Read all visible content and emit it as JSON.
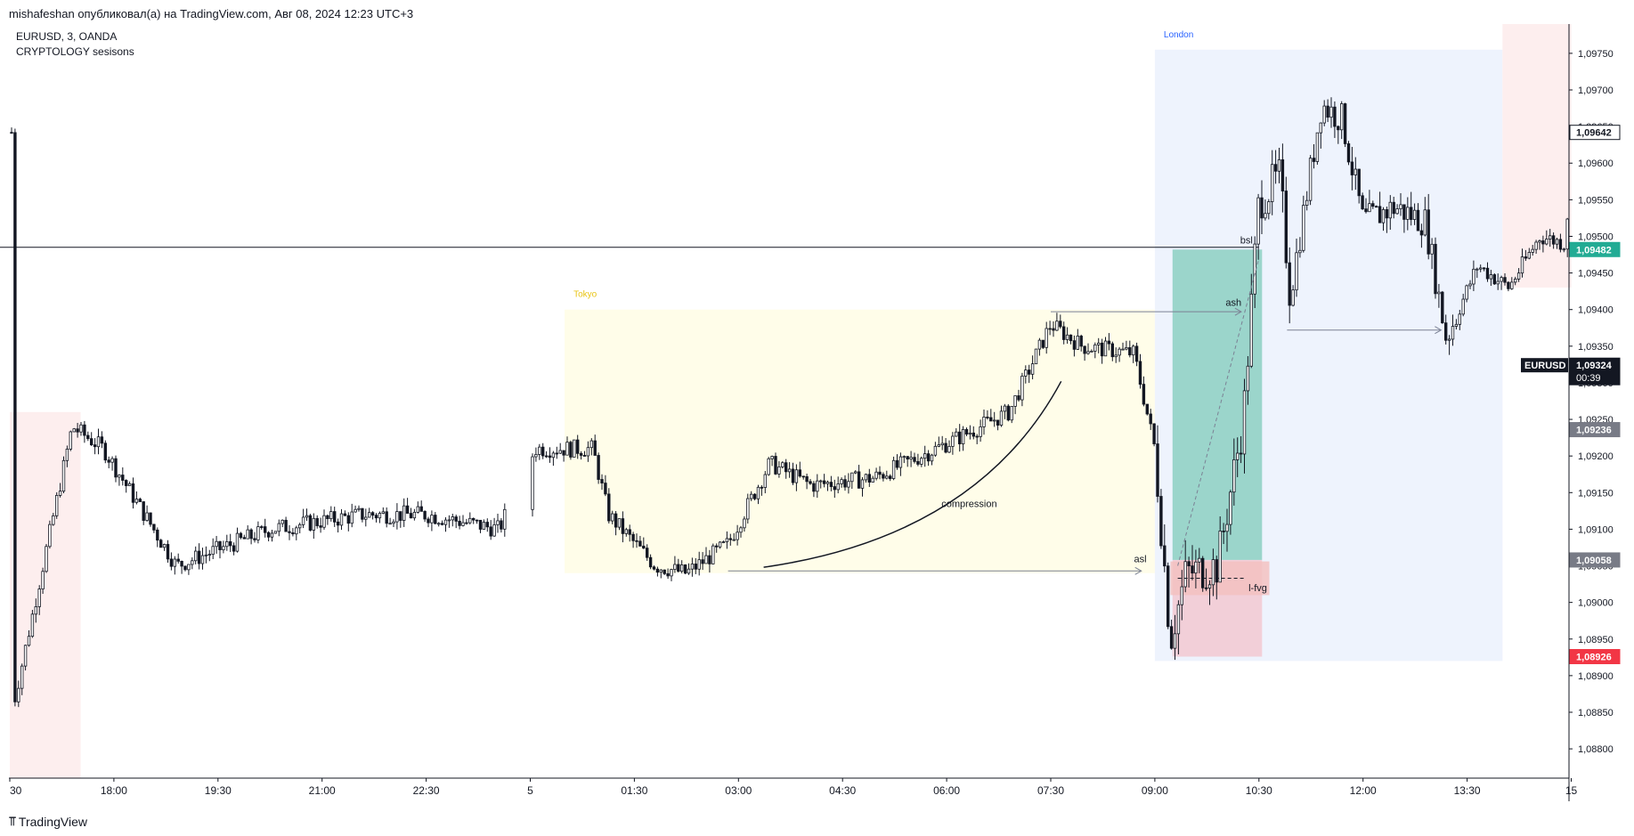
{
  "header": {
    "published": "mishafeshan опубликовал(а) на TradingView.com, Авг 08, 2024 12:23 UTC+3"
  },
  "footer": {
    "brand": "TradingView",
    "logo": "tradingview-logo-icon"
  },
  "colors": {
    "candle": "#131722",
    "tokyo_session": "#fffde9",
    "london_session": "#eef3fd",
    "ny_session": "#fdeeee",
    "teal_zone": "#9bd5cb",
    "pink_zone": "#f2cfd8",
    "fvg_zone": "#f3c1c1",
    "badge_green": "#22ab94",
    "badge_red": "#f23645",
    "badge_gray": "#787b86",
    "badge_black": "#131722"
  },
  "chart_data": {
    "type": "candlestick",
    "symbol_line": "EURUSD, 3, OANDA",
    "indicator_line": "CRYPTOLOGY sesisons",
    "ylim": [
      1.0876,
      1.0979
    ],
    "y_ticks": [
      "1,09750",
      "1,09700",
      "1,09650",
      "1,09600",
      "1,09550",
      "1,09500",
      "1,09450",
      "1,09400",
      "1,09350",
      "1,09300",
      "1,09250",
      "1,09200",
      "1,09150",
      "1,09100",
      "1,09050",
      "1,09000",
      "1,08950",
      "1,08900",
      "1,08850",
      "1,08800"
    ],
    "x_ticks": [
      {
        "label": "30",
        "t": 0
      },
      {
        "label": "18:00",
        "t": 1
      },
      {
        "label": "19:30",
        "t": 2
      },
      {
        "label": "21:00",
        "t": 3
      },
      {
        "label": "22:30",
        "t": 4
      },
      {
        "label": "5",
        "t": 5
      },
      {
        "label": "01:30",
        "t": 6
      },
      {
        "label": "03:00",
        "t": 7
      },
      {
        "label": "04:30",
        "t": 8
      },
      {
        "label": "06:00",
        "t": 9
      },
      {
        "label": "07:30",
        "t": 10
      },
      {
        "label": "09:00",
        "t": 11
      },
      {
        "label": "10:30",
        "t": 12
      },
      {
        "label": "12:00",
        "t": 13
      },
      {
        "label": "13:30",
        "t": 14
      },
      {
        "label": "15",
        "t": 15
      }
    ],
    "key_points": [
      {
        "t": 0.05,
        "price": 1.0887
      },
      {
        "t": 0.6,
        "price": 1.0924
      },
      {
        "t": 0.9,
        "price": 1.0921
      },
      {
        "t": 1.6,
        "price": 1.0905
      },
      {
        "t": 2.5,
        "price": 1.091
      },
      {
        "t": 3.4,
        "price": 1.0912
      },
      {
        "t": 4.0,
        "price": 1.0912
      },
      {
        "t": 4.7,
        "price": 1.091
      },
      {
        "t": 5.05,
        "price": 1.0921
      },
      {
        "t": 5.6,
        "price": 1.0921
      },
      {
        "t": 5.75,
        "price": 1.0912
      },
      {
        "t": 6.2,
        "price": 1.0905
      },
      {
        "t": 6.5,
        "price": 1.0904
      },
      {
        "t": 6.9,
        "price": 1.0908
      },
      {
        "t": 7.3,
        "price": 1.0919
      },
      {
        "t": 7.7,
        "price": 1.0916
      },
      {
        "t": 8.3,
        "price": 1.0917
      },
      {
        "t": 8.9,
        "price": 1.0921
      },
      {
        "t": 9.6,
        "price": 1.0926
      },
      {
        "t": 10.0,
        "price": 1.0938
      },
      {
        "t": 10.3,
        "price": 1.0935
      },
      {
        "t": 10.8,
        "price": 1.0934
      },
      {
        "t": 11.0,
        "price": 1.0921
      },
      {
        "t": 11.15,
        "price": 1.0895
      },
      {
        "t": 11.3,
        "price": 1.0904
      },
      {
        "t": 11.6,
        "price": 1.0905
      },
      {
        "t": 11.85,
        "price": 1.0925
      },
      {
        "t": 12.0,
        "price": 1.0955
      },
      {
        "t": 12.2,
        "price": 1.0958
      },
      {
        "t": 12.3,
        "price": 1.0942
      },
      {
        "t": 12.6,
        "price": 1.0968
      },
      {
        "t": 12.8,
        "price": 1.0966
      },
      {
        "t": 13.0,
        "price": 1.0952
      },
      {
        "t": 13.3,
        "price": 1.0954
      },
      {
        "t": 13.6,
        "price": 1.0952
      },
      {
        "t": 13.8,
        "price": 1.0936
      },
      {
        "t": 14.1,
        "price": 1.0946
      },
      {
        "t": 14.4,
        "price": 1.0943
      },
      {
        "t": 14.7,
        "price": 1.095
      },
      {
        "t": 14.95,
        "price": 1.0949
      },
      {
        "t": 15.0,
        "price": 1.09642
      }
    ],
    "sessions": [
      {
        "name": "",
        "t0": 0,
        "t1": 0.68,
        "p_top": 1.0926,
        "p_bot": 1.0876,
        "color": "#fdeeee"
      },
      {
        "name": "Tokyo",
        "t0": 5.33,
        "t1": 11.0,
        "p_top": 1.094,
        "p_bot": 1.0904,
        "color": "#fffde9",
        "label_color": "#e8c415"
      },
      {
        "name": "London",
        "t0": 11.0,
        "t1": 14.34,
        "p_top": 1.09755,
        "p_bot": 1.0892,
        "color": "#eef3fd",
        "label_color": "#2962ff"
      },
      {
        "name": "",
        "t0": 14.34,
        "t1": 15.0,
        "p_top": 1.0979,
        "p_bot": 1.0943,
        "color": "#fdeeee"
      }
    ],
    "zones": [
      {
        "name": "teal",
        "t0": 11.17,
        "t1": 12.03,
        "p_top": 1.09482,
        "p_bot": 1.09058,
        "color": "#9bd5cb"
      },
      {
        "name": "pink",
        "t0": 11.17,
        "t1": 12.03,
        "p_top": 1.09058,
        "p_bot": 1.08926,
        "color": "#f2cfd8"
      },
      {
        "name": "fvg",
        "t0": 11.15,
        "t1": 12.1,
        "p_top": 1.09056,
        "p_bot": 1.0901,
        "color": "#f3c1c1"
      }
    ],
    "levels": [
      {
        "name": "bsl-line",
        "t0": -0.1,
        "t1": 12.0,
        "price": 1.09485
      }
    ],
    "annotations": [
      {
        "text": "bsl",
        "t": 11.82,
        "price": 1.09495
      },
      {
        "text": "ash",
        "t": 11.68,
        "price": 1.0941
      },
      {
        "text": "asl",
        "t": 10.8,
        "price": 1.0906
      },
      {
        "text": "compression",
        "t": 8.95,
        "price": 1.09135
      },
      {
        "text": "l-fvg",
        "t": 11.9,
        "price": 1.0902
      }
    ],
    "arrows": [
      {
        "name": "ash-arrow",
        "t0": 10.0,
        "p0": 1.09397,
        "t1": 11.83,
        "p1": 1.09397
      },
      {
        "name": "asl-arrow",
        "t0": 6.9,
        "p0": 1.09043,
        "t1": 10.87,
        "p1": 1.09043
      },
      {
        "name": "london-high-arrow",
        "t0": 12.27,
        "p0": 1.09372,
        "t1": 13.75,
        "p1": 1.09372
      }
    ],
    "price_badges": [
      {
        "text": "1,09642",
        "price": 1.09642,
        "style": "outline"
      },
      {
        "text": "1,09482",
        "price": 1.09482,
        "style": "green"
      },
      {
        "text": "1,09324",
        "price": 1.09324,
        "style": "black",
        "tag": "EURUSD",
        "sub": "00:39"
      },
      {
        "text": "1,09236",
        "price": 1.09236,
        "style": "gray"
      },
      {
        "text": "1,09058",
        "price": 1.09058,
        "style": "gray"
      },
      {
        "text": "1,08926",
        "price": 1.08926,
        "style": "red"
      }
    ]
  }
}
